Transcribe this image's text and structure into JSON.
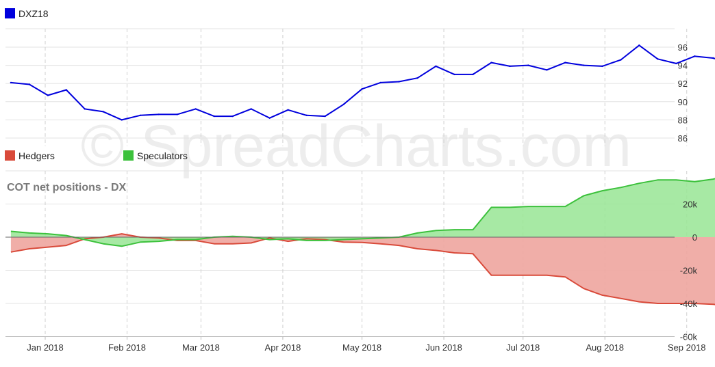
{
  "watermark": "© SpreadCharts.com",
  "colors": {
    "price": "#0000dd",
    "hedgers_line": "#d94a3a",
    "hedgers_fill": "#eea59f",
    "speculators_line": "#3cc13c",
    "speculators_fill": "#98e594",
    "grid": "#e3e3e3",
    "vgrid": "#cfcfcf",
    "axis": "#bbbbbb"
  },
  "chart_data": [
    {
      "type": "line",
      "legend": "DXZ18",
      "x_ticks": [
        "Jan 2018",
        "Feb 2018",
        "Mar 2018",
        "Apr 2018",
        "May 2018",
        "Jun 2018",
        "Jul 2018",
        "Aug 2018",
        "Sep 2018"
      ],
      "y_ticks": [
        "86",
        "88",
        "90",
        "92",
        "94",
        "96"
      ],
      "ylim": [
        85,
        98
      ],
      "x": [
        "2017-12-19",
        "2017-12-26",
        "2018-01-02",
        "2018-01-09",
        "2018-01-16",
        "2018-01-23",
        "2018-01-30",
        "2018-02-06",
        "2018-02-13",
        "2018-02-20",
        "2018-02-27",
        "2018-03-06",
        "2018-03-13",
        "2018-03-20",
        "2018-03-27",
        "2018-04-03",
        "2018-04-10",
        "2018-04-17",
        "2018-04-24",
        "2018-05-01",
        "2018-05-08",
        "2018-05-15",
        "2018-05-22",
        "2018-05-29",
        "2018-06-05",
        "2018-06-12",
        "2018-06-19",
        "2018-06-26",
        "2018-07-03",
        "2018-07-10",
        "2018-07-17",
        "2018-07-24",
        "2018-07-31",
        "2018-08-07",
        "2018-08-14",
        "2018-08-21",
        "2018-08-28",
        "2018-09-04",
        "2018-09-11",
        "2018-09-18"
      ],
      "values": [
        92.1,
        91.9,
        90.7,
        91.3,
        89.2,
        88.9,
        88.0,
        88.5,
        88.6,
        88.6,
        89.2,
        88.4,
        88.4,
        89.2,
        88.2,
        89.1,
        88.5,
        88.4,
        89.7,
        91.4,
        92.1,
        92.2,
        92.6,
        93.9,
        93.0,
        93.0,
        94.3,
        93.9,
        94.0,
        93.5,
        94.3,
        94.0,
        93.9,
        94.6,
        96.2,
        94.7,
        94.2,
        95.0,
        94.8,
        94.2
      ],
      "series": [
        {
          "name": "DXZ18"
        }
      ]
    },
    {
      "type": "area",
      "title": "COT net positions - DX",
      "x_ticks": [
        "Jan 2018",
        "Feb 2018",
        "Mar 2018",
        "Apr 2018",
        "May 2018",
        "Jun 2018",
        "Jul 2018",
        "Aug 2018",
        "Sep 2018"
      ],
      "y_ticks": [
        "20k",
        "0",
        "-20k",
        "-40k",
        "-60k"
      ],
      "ylim": [
        -60000,
        40000
      ],
      "x": [
        "2017-12-19",
        "2017-12-26",
        "2018-01-02",
        "2018-01-09",
        "2018-01-16",
        "2018-01-23",
        "2018-01-30",
        "2018-02-06",
        "2018-02-13",
        "2018-02-20",
        "2018-02-27",
        "2018-03-06",
        "2018-03-13",
        "2018-03-20",
        "2018-03-27",
        "2018-04-03",
        "2018-04-10",
        "2018-04-17",
        "2018-04-24",
        "2018-05-01",
        "2018-05-08",
        "2018-05-15",
        "2018-05-22",
        "2018-05-29",
        "2018-06-05",
        "2018-06-12",
        "2018-06-19",
        "2018-06-26",
        "2018-07-03",
        "2018-07-10",
        "2018-07-17",
        "2018-07-24",
        "2018-07-31",
        "2018-08-07",
        "2018-08-14",
        "2018-08-21",
        "2018-08-28",
        "2018-09-04",
        "2018-09-11",
        "2018-09-18"
      ],
      "series": [
        {
          "name": "Hedgers",
          "values": [
            -9000,
            -7000,
            -6000,
            -5000,
            -1000,
            0,
            2000,
            0,
            -500,
            -2000,
            -2000,
            -4000,
            -4000,
            -3500,
            -500,
            -2500,
            -1000,
            -1500,
            -3000,
            -3200,
            -4000,
            -5000,
            -7000,
            -8000,
            -9500,
            -10000,
            -23000,
            -23000,
            -23000,
            -23000,
            -24000,
            -31000,
            -35000,
            -37000,
            -39000,
            -40000,
            -40000,
            -40000,
            -40500,
            -42000
          ]
        },
        {
          "name": "Speculators",
          "values": [
            3500,
            2500,
            2000,
            1000,
            -1500,
            -4000,
            -5500,
            -3000,
            -2500,
            -1500,
            -1500,
            0,
            500,
            0,
            -1500,
            -1000,
            -2000,
            -2000,
            -1500,
            -1000,
            -500,
            0,
            2500,
            4000,
            4500,
            4500,
            18000,
            18000,
            18500,
            18500,
            18500,
            25000,
            28000,
            30000,
            32500,
            34500,
            34500,
            33500,
            35000,
            38000
          ]
        }
      ]
    }
  ]
}
